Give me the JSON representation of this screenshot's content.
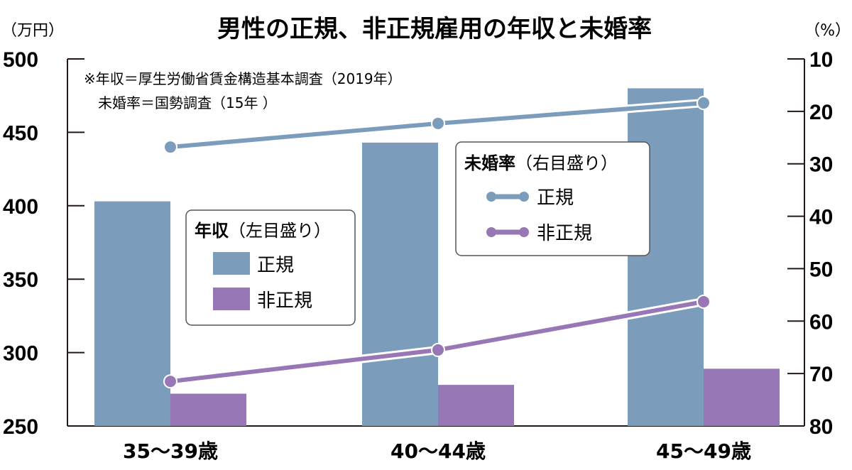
{
  "chart_data": {
    "type": "bar+line",
    "title": "男性の正規、非正規雇用の年収と未婚率",
    "note_lines": [
      "※年収＝厚生労働省賃金構造基本調査（2019年）",
      "未婚率＝国勢調査（15年 ）"
    ],
    "categories": [
      "35～39歳",
      "40～44歳",
      "45～49歳"
    ],
    "left_axis": {
      "unit_label": "（万円）",
      "range": [
        250,
        500
      ],
      "ticks": [
        "500",
        "450",
        "400",
        "350",
        "300",
        "250"
      ]
    },
    "right_axis": {
      "unit_label": "（%）",
      "range": [
        10,
        80
      ],
      "inverted": true,
      "ticks": [
        "10",
        "20",
        "30",
        "40",
        "50",
        "60",
        "70",
        "80"
      ]
    },
    "bar_legend": {
      "title_bold": "年収",
      "title_rest": "（左目盛り）"
    },
    "line_legend": {
      "title_bold": "未婚率",
      "title_rest": "（右目盛り）"
    },
    "bar_series": [
      {
        "name": "正規",
        "color": "#7b9dbb",
        "values": [
          403,
          443,
          480
        ]
      },
      {
        "name": "非正規",
        "color": "#9777b5",
        "values": [
          272,
          278,
          289
        ]
      }
    ],
    "line_series": [
      {
        "name": "正規",
        "color": "#7b9dbb",
        "values": [
          26.8,
          22.3,
          18.4
        ]
      },
      {
        "name": "非正規",
        "color": "#9777b5",
        "values": [
          71.5,
          65.5,
          56.3
        ]
      }
    ]
  }
}
